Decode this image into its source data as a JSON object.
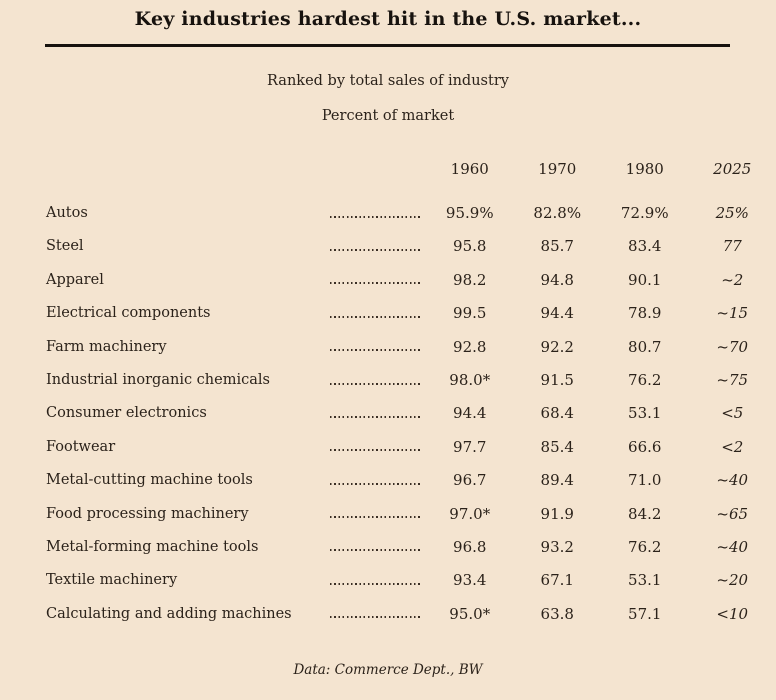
{
  "title": "Key industries hardest hit in the U.S. market...",
  "subtitle_ranked": "Ranked by total sales of industry",
  "subtitle_percent": "Percent of market",
  "source": "Data: Commerce Dept., BW",
  "colors": {
    "background": "#f4e4d0",
    "text": "#2b221a",
    "rule": "#17120e"
  },
  "chart_data": {
    "type": "table",
    "title": "Key industries hardest hit in the U.S. market...",
    "subtitle": "Ranked by total sales of industry — Percent of market",
    "columns": [
      "1960",
      "1970",
      "1980",
      "2025"
    ],
    "column_styles": [
      "normal",
      "normal",
      "normal",
      "italic"
    ],
    "rows": [
      {
        "label": "Autos",
        "values": [
          "95.9%",
          "82.8%",
          "72.9%",
          "25%"
        ]
      },
      {
        "label": "Steel",
        "values": [
          "95.8",
          "85.7",
          "83.4",
          "77"
        ]
      },
      {
        "label": "Apparel",
        "values": [
          "98.2",
          "94.8",
          "90.1",
          "~2"
        ]
      },
      {
        "label": "Electrical components",
        "values": [
          "99.5",
          "94.4",
          "78.9",
          "~15"
        ]
      },
      {
        "label": "Farm machinery",
        "values": [
          "92.8",
          "92.2",
          "80.7",
          "~70"
        ]
      },
      {
        "label": "Industrial inorganic chemicals",
        "values": [
          "98.0*",
          "91.5",
          "76.2",
          "~75"
        ]
      },
      {
        "label": "Consumer electronics",
        "values": [
          "94.4",
          "68.4",
          "53.1",
          "<5"
        ]
      },
      {
        "label": "Footwear",
        "values": [
          "97.7",
          "85.4",
          "66.6",
          "<2"
        ]
      },
      {
        "label": "Metal-cutting machine tools",
        "values": [
          "96.7",
          "89.4",
          "71.0",
          "~40"
        ]
      },
      {
        "label": "Food processing machinery",
        "values": [
          "97.0*",
          "91.9",
          "84.2",
          "~65"
        ]
      },
      {
        "label": "Metal-forming machine tools",
        "values": [
          "96.8",
          "93.2",
          "76.2",
          "~40"
        ]
      },
      {
        "label": "Textile machinery",
        "values": [
          "93.4",
          "67.1",
          "53.1",
          "~20"
        ]
      },
      {
        "label": "Calculating and adding machines",
        "values": [
          "95.0*",
          "63.8",
          "57.1",
          "<10"
        ]
      }
    ],
    "source": "Data: Commerce Dept., BW"
  }
}
